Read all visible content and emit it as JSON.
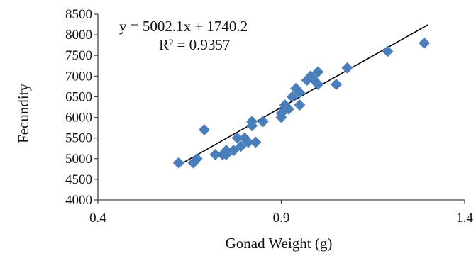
{
  "chart_data": {
    "type": "scatter",
    "title": "",
    "xlabel": "Gonad Weight (g)",
    "ylabel": "Fecundity",
    "xlim": [
      0.4,
      1.4
    ],
    "ylim": [
      4000,
      8500
    ],
    "x_ticks": [
      0.4,
      0.9,
      1.4
    ],
    "x_tick_labels": [
      "0.4",
      "0.9",
      "1.4"
    ],
    "y_ticks": [
      4000,
      4500,
      5000,
      5500,
      6000,
      6500,
      7000,
      7500,
      8000,
      8500
    ],
    "y_tick_labels": [
      "4000",
      "4500",
      "5000",
      "5500",
      "6000",
      "6500",
      "7000",
      "7500",
      "8000",
      "8500"
    ],
    "grid": false,
    "marker": "diamond",
    "marker_color": "#4a7ebb",
    "trendline_color": "#000000",
    "equation": "y = 5002.1x + 1740.2",
    "r_squared": "R² = 0.9357",
    "trendline": {
      "slope": 5002.1,
      "intercept": 1740.2,
      "x_range": [
        0.62,
        1.3
      ]
    },
    "points": [
      {
        "x": 0.62,
        "y": 4900
      },
      {
        "x": 0.66,
        "y": 4900
      },
      {
        "x": 0.67,
        "y": 5000
      },
      {
        "x": 0.69,
        "y": 5700
      },
      {
        "x": 0.72,
        "y": 5100
      },
      {
        "x": 0.74,
        "y": 5100
      },
      {
        "x": 0.75,
        "y": 5200
      },
      {
        "x": 0.75,
        "y": 5100
      },
      {
        "x": 0.77,
        "y": 5200
      },
      {
        "x": 0.78,
        "y": 5500
      },
      {
        "x": 0.79,
        "y": 5300
      },
      {
        "x": 0.8,
        "y": 5500
      },
      {
        "x": 0.81,
        "y": 5400
      },
      {
        "x": 0.82,
        "y": 5800
      },
      {
        "x": 0.82,
        "y": 5900
      },
      {
        "x": 0.83,
        "y": 5400
      },
      {
        "x": 0.85,
        "y": 5900
      },
      {
        "x": 0.9,
        "y": 6000
      },
      {
        "x": 0.9,
        "y": 6100
      },
      {
        "x": 0.91,
        "y": 6200
      },
      {
        "x": 0.91,
        "y": 6300
      },
      {
        "x": 0.92,
        "y": 6200
      },
      {
        "x": 0.93,
        "y": 6500
      },
      {
        "x": 0.94,
        "y": 6700
      },
      {
        "x": 0.95,
        "y": 6300
      },
      {
        "x": 0.95,
        "y": 6600
      },
      {
        "x": 0.97,
        "y": 6900
      },
      {
        "x": 0.98,
        "y": 7000
      },
      {
        "x": 0.99,
        "y": 6900
      },
      {
        "x": 1.0,
        "y": 7100
      },
      {
        "x": 1.0,
        "y": 6800
      },
      {
        "x": 1.05,
        "y": 6800
      },
      {
        "x": 1.08,
        "y": 7200
      },
      {
        "x": 1.19,
        "y": 7600
      },
      {
        "x": 1.29,
        "y": 7800
      }
    ]
  }
}
